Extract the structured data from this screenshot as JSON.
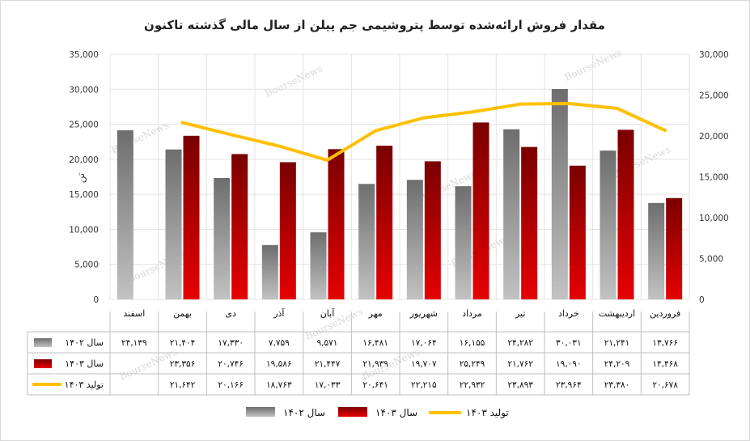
{
  "chart_data": {
    "type": "bar",
    "title": "مقدار فروش ارائه‌شده توسط پتروشیمی جم پیلن از سال مالی گذشته تاکنون",
    "ylabel": "تن",
    "ylim": [
      0,
      35000
    ],
    "y2lim": [
      0,
      30000
    ],
    "yticks": [
      "0",
      "5,000",
      "10,000",
      "15,000",
      "20,000",
      "25,000",
      "30,000",
      "35,000"
    ],
    "y2ticks": [
      "0",
      "5,000",
      "10,000",
      "15,000",
      "20,000",
      "25,000",
      "30,000"
    ],
    "categories": [
      "فروردین",
      "اردیبهشت",
      "خرداد",
      "تیر",
      "مرداد",
      "شهریور",
      "مهر",
      "آبان",
      "آذر",
      "دی",
      "بهمن",
      "اسفند"
    ],
    "series": [
      {
        "name": "سال ۱۴۰۲",
        "type": "bar",
        "color": "#8c8c8c",
        "values": [
          13766,
          21241,
          30031,
          24282,
          16155,
          17064,
          16481,
          9571,
          7759,
          17330,
          21404,
          24139
        ],
        "labels": [
          "۱۳,۷۶۶",
          "۲۱,۲۴۱",
          "۳۰,۰۳۱",
          "۲۴,۲۸۲",
          "۱۶,۱۵۵",
          "۱۷,۰۶۴",
          "۱۶,۴۸۱",
          "۹,۵۷۱",
          "۷,۷۵۹",
          "۱۷,۳۳۰",
          "۲۱,۴۰۴",
          "۲۴,۱۳۹"
        ]
      },
      {
        "name": "سال ۱۴۰۳",
        "type": "bar",
        "color": "#b30000",
        "values": [
          14468,
          24209,
          19090,
          21762,
          25249,
          19707,
          21939,
          21447,
          19586,
          20746,
          23356,
          null
        ],
        "labels": [
          "۱۴,۴۶۸",
          "۲۴,۲۰۹",
          "۱۹,۰۹۰",
          "۲۱,۷۶۲",
          "۲۵,۲۴۹",
          "۱۹,۷۰۷",
          "۲۱,۹۳۹",
          "۲۱,۴۴۷",
          "۱۹,۵۸۶",
          "۲۰,۷۴۶",
          "۲۳,۳۵۶",
          ""
        ]
      },
      {
        "name": "تولید ۱۴۰۳",
        "type": "line",
        "axis": "secondary",
        "color": "#ffc000",
        "values": [
          20678,
          23380,
          23964,
          23893,
          22932,
          22215,
          20641,
          17033,
          18763,
          20166,
          21642,
          null
        ],
        "labels": [
          "۲۰,۶۷۸",
          "۲۳,۳۸۰",
          "۲۳,۹۶۴",
          "۲۳,۸۹۳",
          "۲۲,۹۳۲",
          "۲۲,۲۱۵",
          "۲۰,۶۴۱",
          "۱۷,۰۳۳",
          "۱۸,۷۶۳",
          "۲۰,۱۶۶",
          "۲۱,۶۴۲",
          ""
        ]
      }
    ],
    "legend": [
      "سال ۱۴۰۲",
      "سال ۱۴۰۳",
      "تولید ۱۴۰۳"
    ],
    "legend_position": "bottom",
    "data_table": true,
    "watermark": "BourseNews"
  }
}
